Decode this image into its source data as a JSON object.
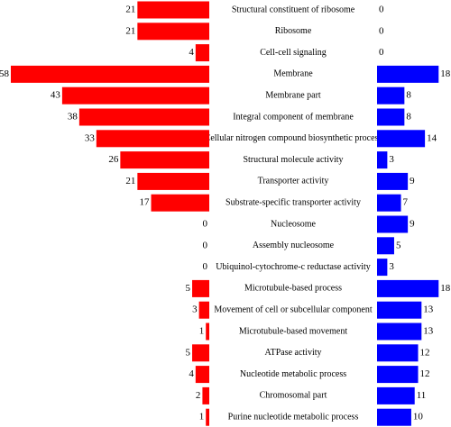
{
  "chart_data": {
    "type": "butterfly",
    "categories": [
      "Structural constituent of ribosome",
      "Ribosome",
      "Cell-cell signaling",
      "Membrane",
      "Membrane part",
      "Integral component of membrane",
      "Cellular nitrogen compound biosynthetic process",
      "Structural molecule activity",
      "Transporter activity",
      "Substrate-specific transporter activity",
      "Nucleosome",
      "Assembly nucleosome",
      "Ubiquinol-cytochrome-c reductase activity",
      "Microtubule-based process",
      "Movement of cell or subcellular component",
      "Microtubule-based movement",
      "ATPase activity",
      "Nucleotide metabolic process",
      "Chromosomal part",
      "Purine nucleotide metabolic process"
    ],
    "series": [
      {
        "color": "#ff0000",
        "values": [
          21,
          21,
          4,
          58,
          43,
          38,
          33,
          26,
          21,
          17,
          0,
          0,
          0,
          5,
          3,
          1,
          5,
          4,
          2,
          1
        ]
      },
      {
        "color": "#0000ff",
        "values": [
          0,
          0,
          0,
          18,
          8,
          8,
          14,
          3,
          9,
          7,
          9,
          5,
          3,
          18,
          13,
          13,
          12,
          12,
          11,
          10
        ]
      }
    ]
  }
}
